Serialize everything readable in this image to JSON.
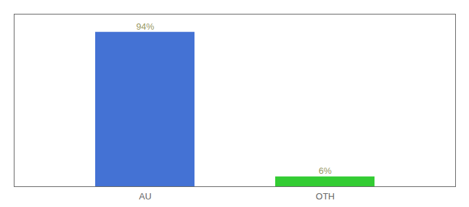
{
  "chart_data": {
    "type": "bar",
    "categories": [
      "AU",
      "OTH"
    ],
    "values": [
      94,
      6
    ],
    "value_labels": [
      "94%",
      "6%"
    ],
    "colors": [
      "#4472d4",
      "#33cc33"
    ],
    "ylim": [
      0,
      105
    ],
    "yticks": [],
    "data_labels": true,
    "tick_labels": "x"
  }
}
